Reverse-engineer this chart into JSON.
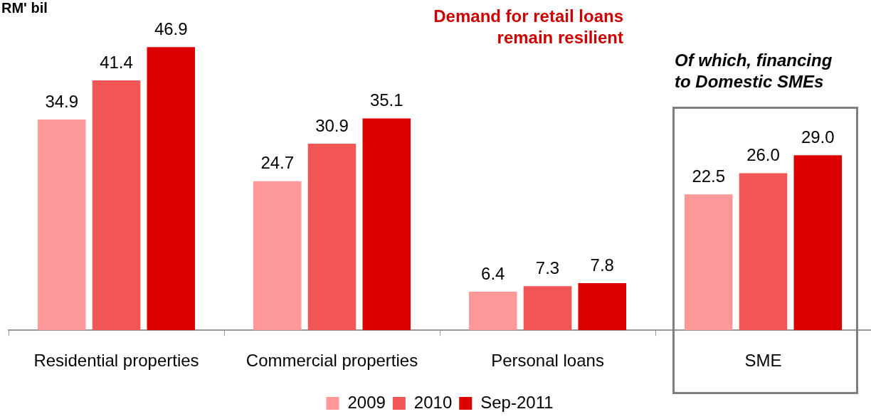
{
  "chart_data": {
    "type": "bar",
    "ylabel": "RM' bil",
    "categories": [
      "Residential properties",
      "Commercial properties",
      "Personal loans",
      "SME"
    ],
    "series": [
      {
        "name": "2009",
        "color": "#ff9999",
        "values": [
          34.9,
          24.7,
          6.4,
          22.5
        ],
        "value_labels": [
          "34.9",
          "24.7",
          "6.4",
          "22.5"
        ]
      },
      {
        "name": "2010",
        "color": "#f25555",
        "values": [
          41.4,
          30.9,
          7.3,
          26.0
        ],
        "value_labels": [
          "41.4",
          "30.9",
          "7.3",
          "26.0"
        ]
      },
      {
        "name": "Sep-2011",
        "color": "#dd0000",
        "values": [
          46.9,
          35.1,
          7.8,
          29.0
        ],
        "value_labels": [
          "46.9",
          "35.1",
          "7.8",
          "29.0"
        ]
      }
    ],
    "legend": "bottom",
    "grid": false,
    "annotations": [
      "Demand for retail loans remain resilient",
      "Of which, financing to Domestic SMEs"
    ]
  }
}
